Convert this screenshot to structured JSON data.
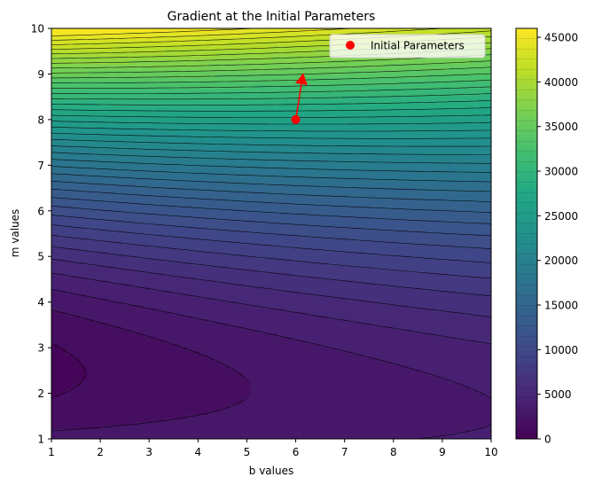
{
  "chart_data": {
    "type": "contour",
    "title": "Gradient at the Initial Parameters",
    "xlabel": "b values",
    "ylabel": "m values",
    "xlim": [
      1,
      10
    ],
    "ylim": [
      1,
      10
    ],
    "xticks": [
      1,
      2,
      3,
      4,
      5,
      6,
      7,
      8,
      9,
      10
    ],
    "yticks": [
      1,
      2,
      3,
      4,
      5,
      6,
      7,
      8,
      9,
      10
    ],
    "colorbar": {
      "colormap": "viridis",
      "range": [
        0,
        46000
      ],
      "ticks": [
        0,
        5000,
        10000,
        15000,
        20000,
        25000,
        30000,
        35000,
        40000,
        45000
      ],
      "tick_labels": [
        "0",
        "5000",
        "10000",
        "15000",
        "20000",
        "25000",
        "30000",
        "35000",
        "40000",
        "45000"
      ]
    },
    "contour_levels": 40,
    "surface_model": {
      "description": "cost surface values estimated from contour lines",
      "minimum_m_by_b": [
        [
          1,
          2.5
        ],
        [
          10,
          1.6
        ]
      ],
      "value_at_m10_by_b": [
        [
          1,
          46000
        ],
        [
          10,
          38500
        ]
      ],
      "value_at_m1_by_b": [
        [
          1,
          2700
        ],
        [
          10,
          3600
        ]
      ]
    },
    "points": [
      {
        "name": "Initial Parameters",
        "b": 6,
        "m": 8,
        "color": "#ff0000"
      }
    ],
    "gradient_arrow": {
      "from": {
        "b": 6,
        "m": 8
      },
      "to": {
        "b": 6.15,
        "m": 9.0
      },
      "color": "#ff0000"
    },
    "legend": {
      "label": "Initial Parameters",
      "position": "upper right"
    }
  }
}
